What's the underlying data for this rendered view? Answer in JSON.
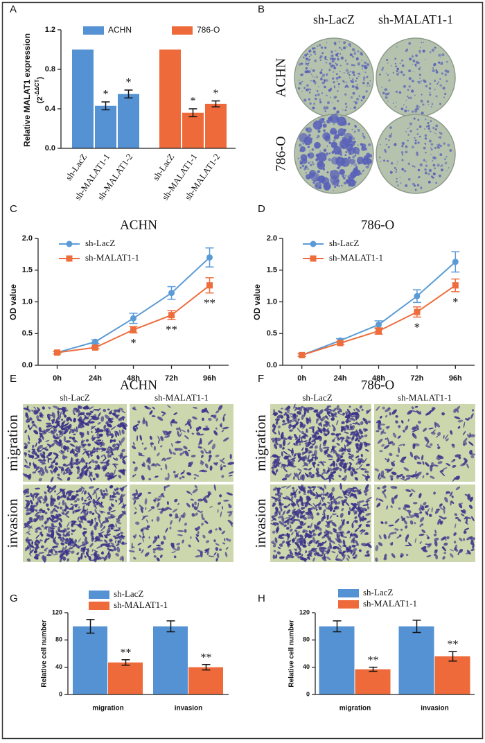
{
  "chart_data": [
    {
      "type": "bar",
      "panel": "A",
      "ylabel": "Relative  MALAT1  expression",
      "ylabel_unit": {
        "base": "(2",
        "exponent": "-ΔΔCT",
        "close": ")"
      },
      "ylim": [
        0,
        1.2
      ],
      "yticks": [
        {
          "value": 0,
          "label": "0.0"
        },
        0.4,
        0.8,
        1.2
      ],
      "groups": [
        {
          "name": "ACHN",
          "color": "#5592d4",
          "categories": [
            "sh-LacZ",
            "sh-MALAT1-1",
            "sh-MALAT1-2"
          ],
          "values": [
            1.0,
            0.43,
            0.55
          ],
          "errors": [
            null,
            0.04,
            0.04
          ],
          "annotations": [
            null,
            "*",
            "*"
          ]
        },
        {
          "name": "786-O",
          "color": "#ee6a3a",
          "categories": [
            "sh-LacZ",
            "sh-MALAT1-1",
            "sh-MALAT1-2"
          ],
          "values": [
            1.0,
            0.36,
            0.45
          ],
          "errors": [
            null,
            0.04,
            0.03
          ],
          "annotations": [
            null,
            "*",
            "*"
          ]
        }
      ]
    },
    {
      "type": "line",
      "panel": "C",
      "title": "ACHN",
      "ylabel": "OD value",
      "categories": [
        "0h",
        "24h",
        "48h",
        "72h",
        "96h"
      ],
      "ylim": [
        0,
        2
      ],
      "yticks": [
        {
          "value": 0,
          "label": "0.0"
        },
        0.5,
        {
          "value": 1,
          "label": "1.0"
        },
        1.5,
        {
          "value": 2,
          "label": "2.0"
        }
      ],
      "series": [
        {
          "name": "sh-LacZ",
          "color": "#5b9bd5",
          "marker": "circle",
          "values": [
            0.2,
            0.37,
            0.74,
            1.14,
            1.7
          ],
          "errors": [
            0.02,
            0.03,
            0.08,
            0.1,
            0.15
          ]
        },
        {
          "name": "sh-MALAT1-1",
          "color": "#ed6d3d",
          "marker": "square",
          "values": [
            0.2,
            0.28,
            0.56,
            0.79,
            1.26
          ],
          "errors": [
            0.02,
            0.02,
            0.05,
            0.07,
            0.12
          ]
        }
      ],
      "annotations": [
        null,
        null,
        "*",
        "**",
        "**"
      ]
    },
    {
      "type": "line",
      "panel": "D",
      "title": "786-O",
      "ylabel": "OD value",
      "categories": [
        "0h",
        "24h",
        "48h",
        "72h",
        "96h"
      ],
      "ylim": [
        0,
        2
      ],
      "yticks": [
        {
          "value": 0,
          "label": "0.0"
        },
        0.5,
        {
          "value": 1,
          "label": "1.0"
        },
        1.5,
        {
          "value": 2,
          "label": "2.0"
        }
      ],
      "series": [
        {
          "name": "sh-LacZ",
          "color": "#5b9bd5",
          "marker": "circle",
          "values": [
            0.16,
            0.39,
            0.64,
            1.09,
            1.63
          ],
          "errors": [
            0.02,
            0.03,
            0.06,
            0.1,
            0.16
          ]
        },
        {
          "name": "sh-MALAT1-1",
          "color": "#ed6d3d",
          "marker": "square",
          "values": [
            0.16,
            0.35,
            0.54,
            0.84,
            1.26
          ],
          "errors": [
            0.02,
            0.02,
            0.05,
            0.08,
            0.1
          ]
        }
      ],
      "annotations": [
        null,
        null,
        null,
        "*",
        "*"
      ]
    },
    {
      "type": "bar",
      "panel": "G",
      "ylabel": "Relative cell number",
      "categories": [
        "migration",
        "invasion"
      ],
      "ylim": [
        0,
        120
      ],
      "yticks": [
        0,
        40,
        80,
        120
      ],
      "series": [
        {
          "name": "sh-LacZ",
          "color": "#5592d4",
          "values": [
            100,
            100
          ],
          "errors": [
            10,
            8
          ],
          "annotations": [
            null,
            null
          ]
        },
        {
          "name": "sh-MALAT1-1",
          "color": "#ee6a3a",
          "values": [
            47,
            40
          ],
          "errors": [
            4,
            4
          ],
          "annotations": [
            "**",
            "**"
          ]
        }
      ]
    },
    {
      "type": "bar",
      "panel": "H",
      "ylabel": "Relative cell number",
      "categories": [
        "migration",
        "invasion"
      ],
      "ylim": [
        0,
        120
      ],
      "yticks": [
        0,
        40,
        80,
        120
      ],
      "series": [
        {
          "name": "sh-LacZ",
          "color": "#5592d4",
          "values": [
            100,
            100
          ],
          "errors": [
            8,
            9
          ],
          "annotations": [
            null,
            null
          ]
        },
        {
          "name": "sh-MALAT1-1",
          "color": "#ee6a3a",
          "values": [
            37,
            56
          ],
          "errors": [
            3,
            7
          ],
          "annotations": [
            "**",
            "**"
          ]
        }
      ]
    }
  ],
  "figure_panels": [
    {
      "panel": "B",
      "columns": [
        "sh-LacZ",
        "sh-MALAT1-1"
      ],
      "rows": [
        "ACHN",
        "786-O"
      ]
    },
    {
      "panel": "E",
      "title": "ACHN",
      "columns": [
        "sh-LacZ",
        "sh-MALAT1-1"
      ],
      "rows": [
        "migration",
        "invasion"
      ]
    },
    {
      "panel": "F",
      "title": "786-O",
      "columns": [
        "sh-LacZ",
        "sh-MALAT1-1"
      ],
      "rows": [
        "migration",
        "invasion"
      ]
    }
  ]
}
